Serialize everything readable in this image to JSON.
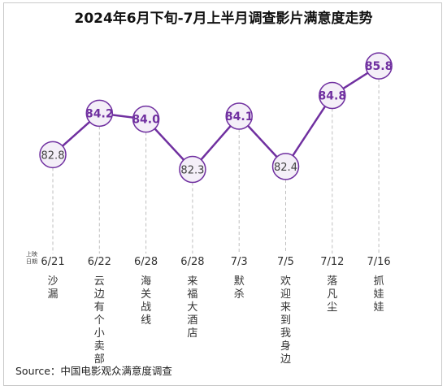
{
  "chart_data": {
    "type": "line",
    "title": "2024年6月下旬-7月上半月调查影片满意度走势",
    "x_axis_label": "上映日期",
    "dates": [
      "6/21",
      "6/22",
      "6/28",
      "6/28",
      "7/3",
      "7/5",
      "7/12",
      "7/16"
    ],
    "films": [
      "沙漏",
      "云边有个小卖部",
      "海关战线",
      "来福大酒店",
      "默杀",
      "欢迎来到我身边",
      "落凡尘",
      "抓娃娃"
    ],
    "values": [
      82.8,
      84.2,
      84.0,
      82.3,
      84.1,
      82.4,
      84.8,
      85.8
    ],
    "highlight_values": [
      false,
      true,
      true,
      false,
      true,
      false,
      true,
      true
    ],
    "ylim": [
      81.6,
      86.6
    ],
    "source": "Source：中国电影观众满意度调查",
    "colors": {
      "line": "#7030a0",
      "highlight_text": "#7030a0",
      "normal_text": "#404040",
      "marker_fill": "#f4eff8",
      "guide": "#bfbfbf"
    }
  }
}
